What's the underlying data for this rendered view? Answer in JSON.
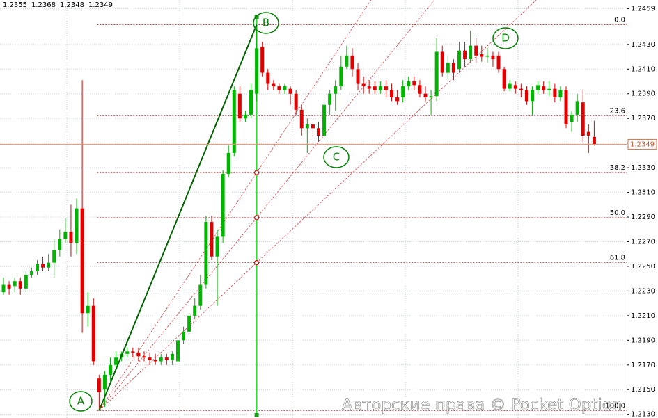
{
  "chart_data": {
    "type": "candlestick",
    "ylim": [
      1.2127,
      1.2466
    ],
    "yticks": [
      1.2459,
      {
        "value": 1.243,
        "label": "1.2430"
      },
      {
        "value": 1.241,
        "label": "1.2410"
      },
      {
        "value": 1.239,
        "label": "1.2390"
      },
      {
        "value": 1.237,
        "label": "1.2370"
      },
      {
        "value": 1.235,
        "label": "1.2350"
      },
      {
        "value": 1.233,
        "label": "1.2330"
      },
      {
        "value": 1.231,
        "label": "1.2310"
      },
      {
        "value": 1.229,
        "label": "1.2290"
      },
      {
        "value": 1.227,
        "label": "1.2270"
      },
      {
        "value": 1.225,
        "label": "1.2250"
      },
      {
        "value": 1.223,
        "label": "1.2230"
      },
      {
        "value": 1.221,
        "label": "1.2210"
      },
      {
        "value": 1.219,
        "label": "1.2190"
      },
      {
        "value": 1.217,
        "label": "1.2170"
      },
      {
        "value": 1.215,
        "label": "1.2150"
      },
      {
        "value": 1.213,
        "label": "1.2130"
      }
    ],
    "grid": true,
    "up_color": "#00b400",
    "down_color": "#e00000",
    "candles": [
      [
        1.2229,
        1.2241,
        1.2227,
        1.2235
      ],
      [
        1.2235,
        1.2238,
        1.2227,
        1.2232
      ],
      [
        1.2234,
        1.2241,
        1.2229,
        1.2238
      ],
      [
        1.2238,
        1.2241,
        1.2227,
        1.2232
      ],
      [
        1.2232,
        1.2246,
        1.2229,
        1.2243
      ],
      [
        1.2243,
        1.2249,
        1.2241,
        1.2246
      ],
      [
        1.2246,
        1.2255,
        1.2243,
        1.2252
      ],
      [
        1.2252,
        1.2258,
        1.2246,
        1.2249
      ],
      [
        1.2249,
        1.226,
        1.2246,
        1.2253
      ],
      [
        1.2253,
        1.2272,
        1.2241,
        1.2263
      ],
      [
        1.2263,
        1.228,
        1.2258,
        1.2272
      ],
      [
        1.2272,
        1.2289,
        1.2269,
        1.2278
      ],
      [
        1.2278,
        1.23,
        1.2258,
        1.2269
      ],
      [
        1.2269,
        1.2305,
        1.226,
        1.2297
      ],
      [
        1.2297,
        1.2401,
        1.2196,
        1.2212
      ],
      [
        1.2212,
        1.2229,
        1.2201,
        1.2218
      ],
      [
        1.2218,
        1.2224,
        1.217,
        1.2173
      ],
      [
        1.2159,
        1.2162,
        1.2133,
        1.2148
      ],
      [
        1.215,
        1.2165,
        1.2136,
        1.2162
      ],
      [
        1.2162,
        1.2176,
        1.2157,
        1.217
      ],
      [
        1.217,
        1.2181,
        1.2167,
        1.2176
      ],
      [
        1.2176,
        1.2181,
        1.2173,
        1.2179
      ],
      [
        1.2179,
        1.2184,
        1.2176,
        1.2181
      ],
      [
        1.2181,
        1.2184,
        1.2176,
        1.218
      ],
      [
        1.218,
        1.2184,
        1.2173,
        1.2177
      ],
      [
        1.2177,
        1.2181,
        1.2173,
        1.2176
      ],
      [
        1.2176,
        1.218,
        1.217,
        1.2174
      ],
      [
        1.2174,
        1.2179,
        1.217,
        1.2173
      ],
      [
        1.2173,
        1.2179,
        1.217,
        1.2176
      ],
      [
        1.2176,
        1.2179,
        1.217,
        1.2174
      ],
      [
        1.2174,
        1.2181,
        1.217,
        1.2179
      ],
      [
        1.2173,
        1.2193,
        1.217,
        1.219
      ],
      [
        1.219,
        1.2201,
        1.2187,
        1.2197
      ],
      [
        1.2197,
        1.2212,
        1.2195,
        1.221
      ],
      [
        1.221,
        1.2224,
        1.2207,
        1.2218
      ],
      [
        1.2218,
        1.2243,
        1.2215,
        1.2235
      ],
      [
        1.2235,
        1.2291,
        1.2232,
        1.2286
      ],
      [
        1.2286,
        1.2291,
        1.2255,
        1.2258
      ],
      [
        1.2258,
        1.228,
        1.2218,
        1.2274
      ],
      [
        1.2274,
        1.2328,
        1.2269,
        1.2325
      ],
      [
        1.2325,
        1.2348,
        1.2322,
        1.2342
      ],
      [
        1.2342,
        1.2396,
        1.2339,
        1.2393
      ],
      [
        1.239,
        1.2396,
        1.2367,
        1.237
      ],
      [
        1.237,
        1.2376,
        1.2367,
        1.2373
      ],
      [
        1.2373,
        1.2398,
        1.237,
        1.2393
      ],
      [
        1.239,
        1.2446,
        1.2384,
        1.2427
      ],
      [
        1.2428,
        1.2432,
        1.2404,
        1.2407
      ],
      [
        1.2407,
        1.241,
        1.2393,
        1.2398
      ],
      [
        1.2398,
        1.2401,
        1.2393,
        1.2396
      ],
      [
        1.2396,
        1.2398,
        1.239,
        1.2393
      ],
      [
        1.2393,
        1.2398,
        1.239,
        1.2396
      ],
      [
        1.2394,
        1.2396,
        1.2381,
        1.239
      ],
      [
        1.239,
        1.2393,
        1.2373,
        1.2377
      ],
      [
        1.2377,
        1.2381,
        1.2356,
        1.2362
      ],
      [
        1.2362,
        1.237,
        1.2342,
        1.2365
      ],
      [
        1.2365,
        1.2367,
        1.2356,
        1.2362
      ],
      [
        1.2362,
        1.2367,
        1.2351,
        1.2356
      ],
      [
        1.2356,
        1.2387,
        1.2353,
        1.2381
      ],
      [
        1.2381,
        1.2393,
        1.2373,
        1.239
      ],
      [
        1.239,
        1.2401,
        1.2376,
        1.2396
      ],
      [
        1.2396,
        1.2421,
        1.2393,
        1.2412
      ],
      [
        1.2412,
        1.2429,
        1.241,
        1.2421
      ],
      [
        1.2421,
        1.2427,
        1.2404,
        1.241
      ],
      [
        1.241,
        1.2415,
        1.2393,
        1.2398
      ],
      [
        1.2398,
        1.2404,
        1.239,
        1.2396
      ],
      [
        1.2396,
        1.2401,
        1.239,
        1.2394
      ],
      [
        1.2396,
        1.24,
        1.239,
        1.2393
      ],
      [
        1.2393,
        1.24,
        1.239,
        1.2396
      ],
      [
        1.2396,
        1.2401,
        1.2387,
        1.2393
      ],
      [
        1.2393,
        1.2398,
        1.2384,
        1.2387
      ],
      [
        1.2387,
        1.2393,
        1.2381,
        1.2384
      ],
      [
        1.2387,
        1.2401,
        1.2383,
        1.2396
      ],
      [
        1.2396,
        1.2404,
        1.2393,
        1.24
      ],
      [
        1.24,
        1.2404,
        1.2393,
        1.2397
      ],
      [
        1.2397,
        1.2401,
        1.2387,
        1.239
      ],
      [
        1.239,
        1.2396,
        1.2384,
        1.2387
      ],
      [
        1.2387,
        1.2393,
        1.2373,
        1.2388
      ],
      [
        1.2388,
        1.2435,
        1.2384,
        1.2424
      ],
      [
        1.2424,
        1.2429,
        1.2404,
        1.2407
      ],
      [
        1.2407,
        1.2421,
        1.2401,
        1.2415
      ],
      [
        1.2415,
        1.2418,
        1.2401,
        1.2407
      ],
      [
        1.241,
        1.2432,
        1.2407,
        1.2425
      ],
      [
        1.2425,
        1.2432,
        1.2412,
        1.2418
      ],
      [
        1.2418,
        1.2441,
        1.2415,
        1.2429
      ],
      [
        1.2429,
        1.2435,
        1.2415,
        1.2421
      ],
      [
        1.2422,
        1.2429,
        1.2416,
        1.242
      ],
      [
        1.242,
        1.2427,
        1.2415,
        1.2421
      ],
      [
        1.2421,
        1.2424,
        1.2412,
        1.2418
      ],
      [
        1.2421,
        1.2424,
        1.2407,
        1.241
      ],
      [
        1.241,
        1.2412,
        1.2392,
        1.2394
      ],
      [
        1.2394,
        1.2401,
        1.2392,
        1.2398
      ],
      [
        1.2397,
        1.24,
        1.239,
        1.2394
      ],
      [
        1.2394,
        1.2398,
        1.2387,
        1.2393
      ],
      [
        1.2393,
        1.2396,
        1.2381,
        1.2384
      ],
      [
        1.2384,
        1.2396,
        1.2373,
        1.2393
      ],
      [
        1.2393,
        1.24,
        1.239,
        1.2397
      ],
      [
        1.2396,
        1.24,
        1.239,
        1.2393
      ],
      [
        1.2393,
        1.24,
        1.2388,
        1.2394
      ],
      [
        1.2394,
        1.2398,
        1.2383,
        1.2387
      ],
      [
        1.2387,
        1.2396,
        1.2384,
        1.2393
      ],
      [
        1.2393,
        1.2396,
        1.2362,
        1.2365
      ],
      [
        1.2367,
        1.2376,
        1.2359,
        1.2373
      ],
      [
        1.2373,
        1.239,
        1.2367,
        1.2384
      ],
      [
        1.2383,
        1.2393,
        1.2351,
        1.2356
      ],
      [
        1.2359,
        1.2365,
        1.2342,
        1.2356
      ],
      [
        1.2355,
        1.2368,
        1.2348,
        1.2349
      ]
    ],
    "fib_levels": [
      {
        "label": "0.0",
        "price": 1.2446,
        "fan": false
      },
      {
        "label": "23.6",
        "price": 1.2372,
        "fan": false
      },
      {
        "label": "38.2",
        "price": 1.2326,
        "fan": true
      },
      {
        "label": "50.0",
        "price": 1.22895,
        "fan": true
      },
      {
        "label": "61.8",
        "price": 1.2253,
        "fan": true
      },
      {
        "label": "100.0",
        "price": 1.2133,
        "fan": false
      }
    ],
    "point_labels": [
      "A",
      "B",
      "C",
      "D"
    ],
    "watermark": "Авторские права © Pocket Option"
  }
}
